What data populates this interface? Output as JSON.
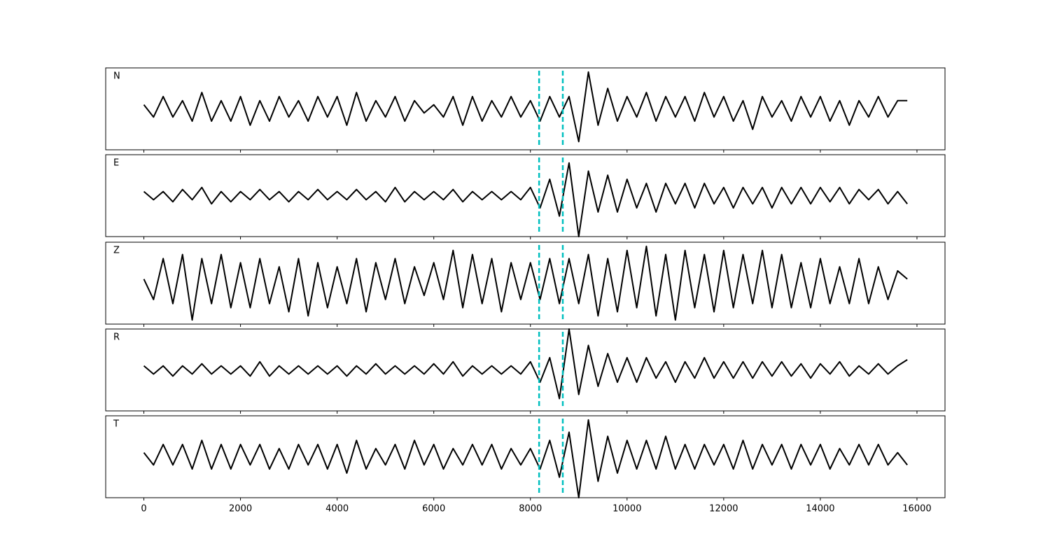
{
  "chart_data": {
    "type": "line",
    "subplots": true,
    "x": [
      0,
      200,
      400,
      600,
      800,
      1000,
      1200,
      1400,
      1600,
      1800,
      2000,
      2200,
      2400,
      2600,
      2800,
      3000,
      3200,
      3400,
      3600,
      3800,
      4000,
      4200,
      4400,
      4600,
      4800,
      5000,
      5200,
      5400,
      5600,
      5800,
      6000,
      6200,
      6400,
      6600,
      6800,
      7000,
      7200,
      7400,
      7600,
      7800,
      8000,
      8200,
      8400,
      8600,
      8800,
      9000,
      9200,
      9400,
      9600,
      9800,
      10000,
      10200,
      10400,
      10600,
      10800,
      11000,
      11200,
      11400,
      11600,
      11800,
      12000,
      12200,
      12400,
      12600,
      12800,
      13000,
      13200,
      13400,
      13600,
      13800,
      14000,
      14200,
      14400,
      14600,
      14800,
      15000,
      15200,
      15400,
      15600,
      15800
    ],
    "series": [
      {
        "name": "N",
        "color": "#000000",
        "values": [
          0.1,
          -0.2,
          0.3,
          -0.2,
          0.2,
          -0.3,
          0.4,
          -0.3,
          0.2,
          -0.3,
          0.3,
          -0.4,
          0.2,
          -0.3,
          0.3,
          -0.2,
          0.2,
          -0.3,
          0.3,
          -0.2,
          0.3,
          -0.4,
          0.4,
          -0.3,
          0.2,
          -0.2,
          0.3,
          -0.3,
          0.2,
          -0.1,
          0.1,
          -0.2,
          0.3,
          -0.4,
          0.3,
          -0.3,
          0.2,
          -0.2,
          0.3,
          -0.2,
          0.2,
          -0.3,
          0.3,
          -0.2,
          0.3,
          -0.8,
          0.9,
          -0.4,
          0.5,
          -0.3,
          0.3,
          -0.2,
          0.4,
          -0.3,
          0.3,
          -0.2,
          0.3,
          -0.3,
          0.4,
          -0.2,
          0.3,
          -0.3,
          0.2,
          -0.5,
          0.3,
          -0.2,
          0.2,
          -0.3,
          0.3,
          -0.2,
          0.3,
          -0.3,
          0.2,
          -0.4,
          0.2,
          -0.2,
          0.3,
          -0.2,
          0.2,
          0.2
        ]
      },
      {
        "name": "E",
        "color": "#000000",
        "values": [
          0.1,
          -0.1,
          0.1,
          -0.15,
          0.15,
          -0.1,
          0.2,
          -0.2,
          0.1,
          -0.15,
          0.1,
          -0.1,
          0.15,
          -0.1,
          0.1,
          -0.15,
          0.1,
          -0.1,
          0.15,
          -0.1,
          0.1,
          -0.1,
          0.15,
          -0.1,
          0.1,
          -0.15,
          0.2,
          -0.15,
          0.1,
          -0.1,
          0.1,
          -0.1,
          0.15,
          -0.15,
          0.1,
          -0.1,
          0.1,
          -0.1,
          0.1,
          -0.1,
          0.2,
          -0.3,
          0.4,
          -0.5,
          0.8,
          -1.0,
          0.6,
          -0.4,
          0.5,
          -0.4,
          0.4,
          -0.3,
          0.3,
          -0.4,
          0.3,
          -0.2,
          0.3,
          -0.3,
          0.3,
          -0.2,
          0.2,
          -0.3,
          0.2,
          -0.2,
          0.2,
          -0.3,
          0.2,
          -0.2,
          0.2,
          -0.2,
          0.2,
          -0.15,
          0.2,
          -0.2,
          0.15,
          -0.1,
          0.15,
          -0.2,
          0.1,
          -0.2
        ]
      },
      {
        "name": "Z",
        "color": "#000000",
        "values": [
          0.1,
          -0.4,
          0.6,
          -0.5,
          0.7,
          -0.9,
          0.6,
          -0.5,
          0.7,
          -0.6,
          0.5,
          -0.6,
          0.6,
          -0.5,
          0.4,
          -0.7,
          0.6,
          -0.8,
          0.5,
          -0.6,
          0.4,
          -0.5,
          0.6,
          -0.7,
          0.5,
          -0.4,
          0.6,
          -0.5,
          0.4,
          -0.3,
          0.5,
          -0.4,
          0.8,
          -0.6,
          0.7,
          -0.5,
          0.6,
          -0.7,
          0.5,
          -0.4,
          0.5,
          -0.4,
          0.6,
          -0.5,
          0.6,
          -0.5,
          0.7,
          -0.8,
          0.6,
          -0.7,
          0.8,
          -0.6,
          0.9,
          -0.8,
          0.7,
          -0.9,
          0.8,
          -0.6,
          0.7,
          -0.7,
          0.8,
          -0.6,
          0.7,
          -0.5,
          0.8,
          -0.6,
          0.7,
          -0.6,
          0.5,
          -0.6,
          0.6,
          -0.5,
          0.4,
          -0.5,
          0.6,
          -0.5,
          0.4,
          -0.4,
          0.3,
          0.1
        ]
      },
      {
        "name": "R",
        "color": "#000000",
        "values": [
          0.1,
          -0.1,
          0.1,
          -0.15,
          0.1,
          -0.1,
          0.15,
          -0.1,
          0.1,
          -0.1,
          0.1,
          -0.15,
          0.2,
          -0.15,
          0.1,
          -0.1,
          0.1,
          -0.1,
          0.1,
          -0.1,
          0.1,
          -0.15,
          0.1,
          -0.1,
          0.15,
          -0.1,
          0.1,
          -0.1,
          0.1,
          -0.1,
          0.15,
          -0.1,
          0.2,
          -0.15,
          0.1,
          -0.1,
          0.1,
          -0.1,
          0.1,
          -0.1,
          0.2,
          -0.3,
          0.3,
          -0.7,
          1.0,
          -0.6,
          0.6,
          -0.4,
          0.4,
          -0.3,
          0.3,
          -0.3,
          0.3,
          -0.2,
          0.2,
          -0.3,
          0.2,
          -0.2,
          0.3,
          -0.2,
          0.2,
          -0.2,
          0.2,
          -0.2,
          0.2,
          -0.15,
          0.2,
          -0.15,
          0.15,
          -0.2,
          0.15,
          -0.1,
          0.2,
          -0.15,
          0.1,
          -0.1,
          0.15,
          -0.1,
          0.1,
          0.25
        ]
      },
      {
        "name": "T",
        "color": "#000000",
        "values": [
          0.1,
          -0.2,
          0.3,
          -0.2,
          0.3,
          -0.3,
          0.4,
          -0.3,
          0.3,
          -0.3,
          0.3,
          -0.2,
          0.3,
          -0.3,
          0.2,
          -0.3,
          0.3,
          -0.2,
          0.3,
          -0.3,
          0.3,
          -0.4,
          0.4,
          -0.3,
          0.2,
          -0.2,
          0.3,
          -0.3,
          0.4,
          -0.2,
          0.3,
          -0.3,
          0.2,
          -0.2,
          0.3,
          -0.2,
          0.3,
          -0.3,
          0.2,
          -0.2,
          0.2,
          -0.3,
          0.4,
          -0.5,
          0.6,
          -1.0,
          0.9,
          -0.6,
          0.5,
          -0.4,
          0.4,
          -0.3,
          0.4,
          -0.3,
          0.5,
          -0.3,
          0.3,
          -0.3,
          0.3,
          -0.2,
          0.3,
          -0.3,
          0.4,
          -0.3,
          0.3,
          -0.2,
          0.3,
          -0.3,
          0.3,
          -0.2,
          0.3,
          -0.3,
          0.2,
          -0.2,
          0.3,
          -0.2,
          0.3,
          -0.2,
          0.1,
          -0.2
        ]
      }
    ],
    "xlim": [
      -790,
      16580
    ],
    "ylim": [
      -1,
      1
    ],
    "xticks": [
      0,
      2000,
      4000,
      6000,
      8000,
      10000,
      12000,
      14000,
      16000
    ],
    "vlines": [
      8180,
      8670
    ],
    "vline_color": "#00bfbf"
  }
}
